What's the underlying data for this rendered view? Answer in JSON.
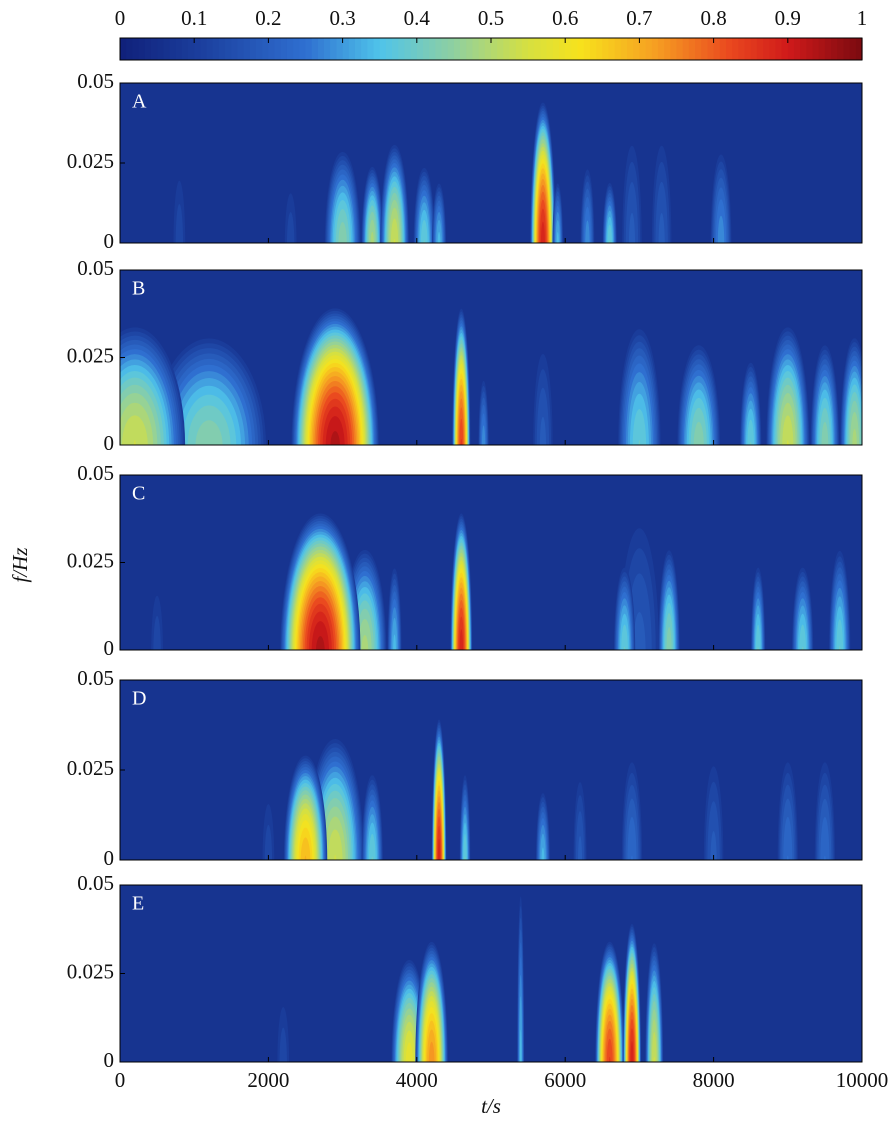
{
  "chart_data": {
    "type": "heatmap",
    "colormap": "jet",
    "clim": [
      0,
      1
    ],
    "cticks": [
      0,
      0.1,
      0.2,
      0.3,
      0.4,
      0.5,
      0.6,
      0.7,
      0.8,
      0.9,
      1
    ],
    "xlim": [
      0,
      10000
    ],
    "xticks": [
      0,
      2000,
      4000,
      6000,
      8000,
      10000
    ],
    "ylim": [
      0,
      0.05
    ],
    "yticks": [
      0,
      0.025,
      0.05
    ],
    "xlabel": "t/s",
    "ylabel": "f/Hz",
    "panels": [
      {
        "label": "A",
        "background_value": 0.07,
        "blobs": [
          {
            "t": 800,
            "width": 200,
            "fmax": 0.025,
            "peak": 0.15
          },
          {
            "t": 2300,
            "width": 200,
            "fmax": 0.02,
            "peak": 0.15
          },
          {
            "t": 3000,
            "width": 500,
            "fmax": 0.03,
            "peak": 0.45
          },
          {
            "t": 3400,
            "width": 300,
            "fmax": 0.025,
            "peak": 0.5
          },
          {
            "t": 3700,
            "width": 400,
            "fmax": 0.032,
            "peak": 0.55
          },
          {
            "t": 4100,
            "width": 300,
            "fmax": 0.025,
            "peak": 0.4
          },
          {
            "t": 4300,
            "width": 200,
            "fmax": 0.02,
            "peak": 0.35
          },
          {
            "t": 5700,
            "width": 350,
            "fmax": 0.045,
            "peak": 0.9
          },
          {
            "t": 5900,
            "width": 150,
            "fmax": 0.02,
            "peak": 0.35
          },
          {
            "t": 6300,
            "width": 200,
            "fmax": 0.025,
            "peak": 0.3
          },
          {
            "t": 6600,
            "width": 200,
            "fmax": 0.02,
            "peak": 0.4
          },
          {
            "t": 6900,
            "width": 300,
            "fmax": 0.035,
            "peak": 0.2
          },
          {
            "t": 7300,
            "width": 300,
            "fmax": 0.035,
            "peak": 0.2
          },
          {
            "t": 8100,
            "width": 300,
            "fmax": 0.03,
            "peak": 0.3
          }
        ]
      },
      {
        "label": "B",
        "background_value": 0.07,
        "blobs": [
          {
            "t": 1200,
            "width": 1600,
            "fmax": 0.032,
            "peak": 0.45
          },
          {
            "t": 200,
            "width": 1400,
            "fmax": 0.035,
            "peak": 0.55
          },
          {
            "t": 2900,
            "width": 1200,
            "fmax": 0.04,
            "peak": 0.95
          },
          {
            "t": 4600,
            "width": 250,
            "fmax": 0.04,
            "peak": 0.85
          },
          {
            "t": 4900,
            "width": 150,
            "fmax": 0.02,
            "peak": 0.3
          },
          {
            "t": 5700,
            "width": 300,
            "fmax": 0.03,
            "peak": 0.2
          },
          {
            "t": 7000,
            "width": 600,
            "fmax": 0.035,
            "peak": 0.4
          },
          {
            "t": 7800,
            "width": 600,
            "fmax": 0.03,
            "peak": 0.45
          },
          {
            "t": 8500,
            "width": 300,
            "fmax": 0.025,
            "peak": 0.4
          },
          {
            "t": 9000,
            "width": 600,
            "fmax": 0.035,
            "peak": 0.55
          },
          {
            "t": 9500,
            "width": 400,
            "fmax": 0.03,
            "peak": 0.45
          },
          {
            "t": 9900,
            "width": 400,
            "fmax": 0.032,
            "peak": 0.5
          }
        ]
      },
      {
        "label": "C",
        "background_value": 0.07,
        "blobs": [
          {
            "t": 500,
            "width": 200,
            "fmax": 0.02,
            "peak": 0.15
          },
          {
            "t": 3300,
            "width": 600,
            "fmax": 0.03,
            "peak": 0.5
          },
          {
            "t": 3700,
            "width": 200,
            "fmax": 0.025,
            "peak": 0.35
          },
          {
            "t": 2700,
            "width": 1100,
            "fmax": 0.04,
            "peak": 0.95
          },
          {
            "t": 4600,
            "width": 300,
            "fmax": 0.04,
            "peak": 0.9
          },
          {
            "t": 7000,
            "width": 600,
            "fmax": 0.04,
            "peak": 0.2
          },
          {
            "t": 6800,
            "width": 300,
            "fmax": 0.025,
            "peak": 0.4
          },
          {
            "t": 7400,
            "width": 300,
            "fmax": 0.03,
            "peak": 0.45
          },
          {
            "t": 8600,
            "width": 200,
            "fmax": 0.025,
            "peak": 0.4
          },
          {
            "t": 9200,
            "width": 300,
            "fmax": 0.025,
            "peak": 0.4
          },
          {
            "t": 9700,
            "width": 300,
            "fmax": 0.03,
            "peak": 0.4
          }
        ]
      },
      {
        "label": "D",
        "background_value": 0.07,
        "blobs": [
          {
            "t": 2000,
            "width": 200,
            "fmax": 0.02,
            "peak": 0.15
          },
          {
            "t": 2900,
            "width": 800,
            "fmax": 0.035,
            "peak": 0.55
          },
          {
            "t": 2500,
            "width": 600,
            "fmax": 0.03,
            "peak": 0.7
          },
          {
            "t": 3400,
            "width": 300,
            "fmax": 0.025,
            "peak": 0.4
          },
          {
            "t": 4300,
            "width": 200,
            "fmax": 0.04,
            "peak": 0.9
          },
          {
            "t": 4650,
            "width": 150,
            "fmax": 0.025,
            "peak": 0.4
          },
          {
            "t": 5700,
            "width": 200,
            "fmax": 0.02,
            "peak": 0.35
          },
          {
            "t": 6200,
            "width": 200,
            "fmax": 0.025,
            "peak": 0.2
          },
          {
            "t": 6900,
            "width": 300,
            "fmax": 0.03,
            "peak": 0.25
          },
          {
            "t": 8000,
            "width": 300,
            "fmax": 0.03,
            "peak": 0.2
          },
          {
            "t": 9000,
            "width": 300,
            "fmax": 0.03,
            "peak": 0.25
          },
          {
            "t": 9500,
            "width": 300,
            "fmax": 0.03,
            "peak": 0.25
          }
        ]
      },
      {
        "label": "E",
        "background_value": 0.07,
        "blobs": [
          {
            "t": 2200,
            "width": 200,
            "fmax": 0.02,
            "peak": 0.15
          },
          {
            "t": 3900,
            "width": 500,
            "fmax": 0.03,
            "peak": 0.6
          },
          {
            "t": 4200,
            "width": 450,
            "fmax": 0.035,
            "peak": 0.75
          },
          {
            "t": 5400,
            "width": 100,
            "fmax": 0.05,
            "peak": 0.35
          },
          {
            "t": 6600,
            "width": 400,
            "fmax": 0.035,
            "peak": 0.85
          },
          {
            "t": 6900,
            "width": 250,
            "fmax": 0.04,
            "peak": 0.9
          },
          {
            "t": 7200,
            "width": 250,
            "fmax": 0.035,
            "peak": 0.55
          }
        ]
      }
    ]
  }
}
